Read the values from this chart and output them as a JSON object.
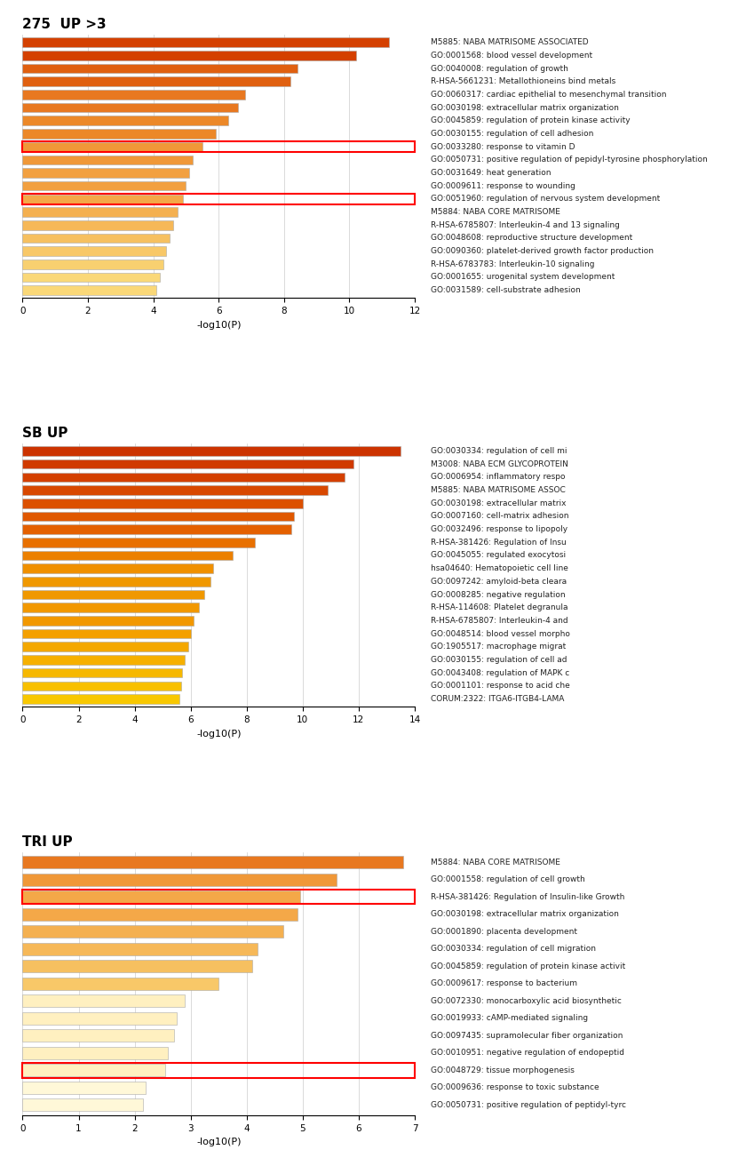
{
  "chart1": {
    "title": "275  UP >3",
    "xlim": [
      0,
      12
    ],
    "xlabel": "-log10(P)",
    "labels": [
      "M5885: NABA MATRISOME ASSOCIATED",
      "GO:0001568: blood vessel development",
      "GO:0040008: regulation of growth",
      "R-HSA-5661231: Metallothioneins bind metals",
      "GO:0060317: cardiac epithelial to mesenchymal transition",
      "GO:0030198: extracellular matrix organization",
      "GO:0045859: regulation of protein kinase activity",
      "GO:0030155: regulation of cell adhesion",
      "GO:0033280: response to vitamin D",
      "GO:0050731: positive regulation of pepidyl-tyrosine phosphorylation",
      "GO:0031649: heat generation",
      "GO:0009611: response to wounding",
      "GO:0051960: regulation of nervous system development",
      "M5884: NABA CORE MATRISOME",
      "R-HSA-6785807: Interleukin-4 and 13 signaling",
      "GO:0048608: reproductive structure development",
      "GO:0090360: platelet-derived growth factor production",
      "R-HSA-6783783: Interleukin-10 signaling",
      "GO:0001655: urogenital system development",
      "GO:0031589: cell-substrate adhesion"
    ],
    "values": [
      11.2,
      10.2,
      8.4,
      8.2,
      6.8,
      6.6,
      6.3,
      5.9,
      5.5,
      5.2,
      5.1,
      5.0,
      4.9,
      4.75,
      4.6,
      4.5,
      4.4,
      4.3,
      4.2,
      4.1
    ],
    "colors": [
      "#D44000",
      "#D44000",
      "#E06010",
      "#E06010",
      "#E87820",
      "#E87820",
      "#EC8828",
      "#EC8828",
      "#F09838",
      "#F09838",
      "#F2A040",
      "#F2A040",
      "#F4A848",
      "#F4B050",
      "#F6B858",
      "#F6C060",
      "#F8C868",
      "#F8D070",
      "#FAD878",
      "#FAD878"
    ],
    "highlighted": [
      8,
      12
    ],
    "xticks": [
      0,
      2,
      4,
      6,
      8,
      10,
      12
    ]
  },
  "chart2": {
    "title": "SB UP",
    "xlim": [
      0,
      14
    ],
    "xlabel": "-log10(P)",
    "labels": [
      "GO:0030334: regulation of cell mi",
      "M3008: NABA ECM GLYCOPROTEIN",
      "GO:0006954: inflammatory respo",
      "M5885: NABA MATRISOME ASSOC",
      "GO:0030198: extracellular matrix",
      "GO:0007160: cell-matrix adhesion",
      "GO:0032496: response to lipopoly",
      "R-HSA-381426: Regulation of Insu",
      "GO:0045055: regulated exocytosi",
      "hsa04640: Hematopoietic cell line",
      "GO:0097242: amyloid-beta cleara",
      "GO:0008285: negative regulation",
      "R-HSA-114608: Platelet degranula",
      "R-HSA-6785807: Interleukin-4 and",
      "GO:0048514: blood vessel morpho",
      "GO:1905517: macrophage migrat",
      "GO:0030155: regulation of cell ad",
      "GO:0043408: regulation of MAPK c",
      "GO:0001101: response to acid che",
      "CORUM:2322: ITGA6-ITGB4-LAMA"
    ],
    "values": [
      13.5,
      11.8,
      11.5,
      10.9,
      10.0,
      9.7,
      9.6,
      8.3,
      7.5,
      6.8,
      6.7,
      6.5,
      6.3,
      6.1,
      6.0,
      5.9,
      5.8,
      5.7,
      5.65,
      5.6
    ],
    "colors": [
      "#CC3300",
      "#D03A00",
      "#D44000",
      "#D84800",
      "#DC5000",
      "#E05800",
      "#E46000",
      "#E87000",
      "#EC8000",
      "#F09000",
      "#F09800",
      "#F09800",
      "#F29800",
      "#F29800",
      "#F4A000",
      "#F4A800",
      "#F6B000",
      "#F6B800",
      "#F8C000",
      "#F8C800"
    ],
    "highlighted": [],
    "xticks": [
      0,
      2,
      4,
      6,
      8,
      10,
      12,
      14
    ]
  },
  "chart3": {
    "title": "TRI UP",
    "xlim": [
      0,
      7
    ],
    "xlabel": "-log10(P)",
    "labels": [
      "M5884: NABA CORE MATRISOME",
      "GO:0001558: regulation of cell growth",
      "R-HSA-381426: Regulation of Insulin-like Growth",
      "GO:0030198: extracellular matrix organization",
      "GO:0001890: placenta development",
      "GO:0030334: regulation of cell migration",
      "GO:0045859: regulation of protein kinase activit",
      "GO:0009617: response to bacterium",
      "GO:0072330: monocarboxylic acid biosynthetic",
      "GO:0019933: cAMP-mediated signaling",
      "GO:0097435: supramolecular fiber organization",
      "GO:0010951: negative regulation of endopeptid",
      "GO:0048729: tissue morphogenesis",
      "GO:0009636: response to toxic substance",
      "GO:0050731: positive regulation of peptidyl-tyrc"
    ],
    "values": [
      6.8,
      5.6,
      4.95,
      4.9,
      4.65,
      4.2,
      4.1,
      3.5,
      2.9,
      2.75,
      2.7,
      2.6,
      2.55,
      2.2,
      2.15
    ],
    "colors": [
      "#E87820",
      "#F09838",
      "#F4A848",
      "#F4A848",
      "#F4B050",
      "#F6B858",
      "#F6C060",
      "#F8C868",
      "#FFF0C0",
      "#FFF0C0",
      "#FFF0C0",
      "#FFF0C0",
      "#FFF0C0",
      "#FFF8D8",
      "#FFF8D8"
    ],
    "highlighted": [
      2,
      12
    ],
    "xticks": [
      0,
      1,
      2,
      3,
      4,
      5,
      6,
      7
    ]
  }
}
